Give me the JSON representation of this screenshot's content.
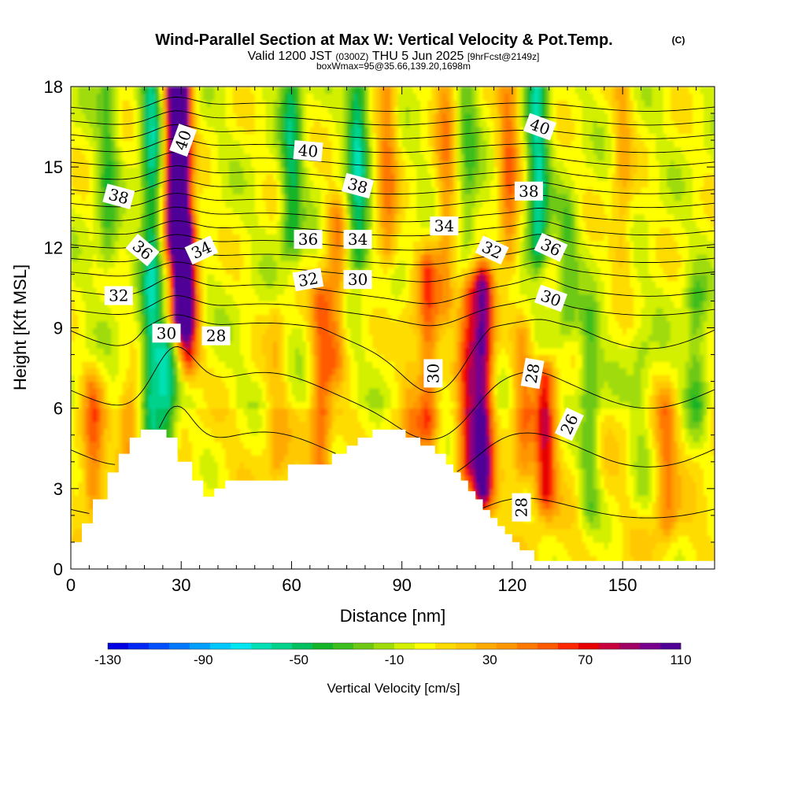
{
  "chart_data": {
    "type": "heatmap",
    "title": "Wind-Parallel Section at Max W: Vertical Velocity & Pot.Temp.",
    "title_mark": "(C)",
    "subtitle_main": "Valid 1200 JST",
    "subtitle_utc": "(0300Z)",
    "subtitle_date": "THU 5 Jun 2025",
    "subtitle_run": "[9hrFcst@2149z]",
    "subtitle_box": "boxWmax=95@35.66,139.20,1698m",
    "xlabel": "Distance [nm]",
    "ylabel": "Height [Kft MSL]",
    "xlim": [
      0,
      175
    ],
    "ylim": [
      0,
      18
    ],
    "x_ticks": [
      "0",
      "30",
      "60",
      "90",
      "120",
      "150"
    ],
    "y_ticks": [
      "0",
      "3",
      "6",
      "9",
      "12",
      "15",
      "18"
    ],
    "colorbar": {
      "label": "Vertical Velocity [cm/s]",
      "tick_labels": [
        "-130",
        "-90",
        "-50",
        "-10",
        "30",
        "70",
        "110"
      ],
      "min": -130,
      "max": 110,
      "colors": [
        "#0000e0",
        "#0028f5",
        "#0050ff",
        "#0078ff",
        "#00a0ff",
        "#00c8ff",
        "#00e6f0",
        "#00e0b4",
        "#00d28c",
        "#00c060",
        "#14b428",
        "#3cbe1e",
        "#6ec814",
        "#a0dc0a",
        "#d2f000",
        "#ffff00",
        "#ffdc00",
        "#ffc800",
        "#ffaa00",
        "#ff9600",
        "#ff7800",
        "#ff5a00",
        "#ff2800",
        "#e60000",
        "#c8003c",
        "#a00064",
        "#78008c",
        "#500096"
      ]
    },
    "terrain_kft": [
      [
        0,
        1.0
      ],
      [
        3,
        1.0
      ],
      [
        3,
        1.7
      ],
      [
        6,
        1.7
      ],
      [
        6,
        2.6
      ],
      [
        10,
        2.6
      ],
      [
        10,
        3.6
      ],
      [
        13,
        3.6
      ],
      [
        13,
        4.3
      ],
      [
        16,
        4.3
      ],
      [
        16,
        4.9
      ],
      [
        19,
        4.9
      ],
      [
        19,
        5.2
      ],
      [
        26,
        5.2
      ],
      [
        26,
        4.9
      ],
      [
        29,
        4.9
      ],
      [
        29,
        4.0
      ],
      [
        33,
        4.0
      ],
      [
        33,
        3.3
      ],
      [
        36,
        3.3
      ],
      [
        36,
        2.7
      ],
      [
        39,
        2.7
      ],
      [
        39,
        3.0
      ],
      [
        42,
        3.0
      ],
      [
        42,
        3.3
      ],
      [
        59,
        3.3
      ],
      [
        59,
        3.9
      ],
      [
        71,
        3.9
      ],
      [
        71,
        4.3
      ],
      [
        75,
        4.3
      ],
      [
        75,
        4.6
      ],
      [
        78,
        4.6
      ],
      [
        78,
        4.9
      ],
      [
        82,
        4.9
      ],
      [
        82,
        5.2
      ],
      [
        91,
        5.2
      ],
      [
        91,
        4.9
      ],
      [
        95,
        4.9
      ],
      [
        95,
        4.6
      ],
      [
        99,
        4.6
      ],
      [
        99,
        4.3
      ],
      [
        102,
        4.3
      ],
      [
        102,
        3.9
      ],
      [
        104,
        3.9
      ],
      [
        104,
        3.6
      ],
      [
        106,
        3.6
      ],
      [
        106,
        3.3
      ],
      [
        108,
        3.3
      ],
      [
        108,
        2.9
      ],
      [
        110,
        2.9
      ],
      [
        110,
        2.6
      ],
      [
        112,
        2.6
      ],
      [
        112,
        2.2
      ],
      [
        114,
        2.2
      ],
      [
        114,
        1.9
      ],
      [
        116,
        1.9
      ],
      [
        116,
        1.6
      ],
      [
        118,
        1.6
      ],
      [
        118,
        1.3
      ],
      [
        120,
        1.3
      ],
      [
        120,
        1.0
      ],
      [
        122,
        1.0
      ],
      [
        122,
        0.7
      ],
      [
        126,
        0.7
      ],
      [
        126,
        0.3
      ],
      [
        175,
        0.3
      ]
    ],
    "w_features": [
      {
        "x": 30,
        "z0": 9.5,
        "z1": 18,
        "w": 105
      },
      {
        "x": 28,
        "z0": 12.5,
        "z1": 18,
        "w": 85
      },
      {
        "x": 32,
        "z0": 8,
        "z1": 12.5,
        "w": 65
      },
      {
        "x": 22,
        "z0": 5.5,
        "z1": 18,
        "w": -55
      },
      {
        "x": 26,
        "z0": 4.5,
        "z1": 8,
        "w": -50
      },
      {
        "x": 10,
        "z0": 12,
        "z1": 18,
        "w": -30
      },
      {
        "x": 6,
        "z0": 3,
        "z1": 6.5,
        "w": 40
      },
      {
        "x": 16,
        "z0": 4.5,
        "z1": 6,
        "w": 35
      },
      {
        "x": 60,
        "z0": 12.5,
        "z1": 18,
        "w": -45
      },
      {
        "x": 56,
        "z0": 4,
        "z1": 9,
        "w": 20
      },
      {
        "x": 68,
        "z0": 3,
        "z1": 10,
        "w": 45
      },
      {
        "x": 72,
        "z0": 8,
        "z1": 13,
        "w": 40
      },
      {
        "x": 78,
        "z0": 12,
        "z1": 18,
        "w": -55
      },
      {
        "x": 86,
        "z0": 12,
        "z1": 18,
        "w": 40
      },
      {
        "x": 92,
        "z0": 5,
        "z1": 9,
        "w": 20
      },
      {
        "x": 97,
        "z0": 5.5,
        "z1": 11,
        "w": 50
      },
      {
        "x": 102,
        "z0": 10,
        "z1": 18,
        "w": 35
      },
      {
        "x": 108,
        "z0": 12.5,
        "z1": 18,
        "w": -25
      },
      {
        "x": 112,
        "z0": 3,
        "z1": 10.5,
        "w": 95
      },
      {
        "x": 108,
        "z0": 4,
        "z1": 10,
        "w": 60
      },
      {
        "x": 119,
        "z0": 12,
        "z1": 18,
        "w": 45
      },
      {
        "x": 123,
        "z0": 4,
        "z1": 8.5,
        "w": 35
      },
      {
        "x": 127,
        "z0": 12,
        "z1": 18,
        "w": -60
      },
      {
        "x": 129,
        "z0": 3,
        "z1": 7,
        "w": 65
      },
      {
        "x": 135,
        "z0": 9.5,
        "z1": 13,
        "w": -25
      },
      {
        "x": 141,
        "z0": 2.5,
        "z1": 9,
        "w": -30
      },
      {
        "x": 155,
        "z0": 3,
        "z1": 8,
        "w": -15
      },
      {
        "x": 162,
        "z0": 2,
        "z1": 6,
        "w": 35
      },
      {
        "x": 170,
        "z0": 6,
        "z1": 10,
        "w": -30
      },
      {
        "x": 150,
        "z0": 12,
        "z1": 18,
        "w": 25
      }
    ],
    "theta_contours": [
      24,
      25,
      26,
      27,
      28,
      29,
      30,
      31,
      32,
      33,
      34,
      35,
      36,
      37,
      38,
      39,
      40,
      41,
      42,
      43
    ],
    "contour_labels": [
      {
        "text": "40",
        "x": 30.5,
        "z": 16.0,
        "angle": -70
      },
      {
        "text": "38",
        "x": 13.0,
        "z": 13.9,
        "angle": 15
      },
      {
        "text": "36",
        "x": 19.5,
        "z": 11.9,
        "angle": 40
      },
      {
        "text": "34",
        "x": 35.5,
        "z": 11.9,
        "angle": -25
      },
      {
        "text": "32",
        "x": 13.0,
        "z": 10.2,
        "angle": 0
      },
      {
        "text": "30",
        "x": 26.0,
        "z": 8.8,
        "angle": 0
      },
      {
        "text": "28",
        "x": 39.5,
        "z": 8.7,
        "angle": 0
      },
      {
        "text": "40",
        "x": 64.5,
        "z": 15.6,
        "angle": 5
      },
      {
        "text": "38",
        "x": 78.0,
        "z": 14.3,
        "angle": 15
      },
      {
        "text": "36",
        "x": 64.5,
        "z": 12.3,
        "angle": 0
      },
      {
        "text": "34",
        "x": 78.0,
        "z": 12.3,
        "angle": 0
      },
      {
        "text": "32",
        "x": 64.5,
        "z": 10.8,
        "angle": -10
      },
      {
        "text": "30",
        "x": 78.0,
        "z": 10.8,
        "angle": 0
      },
      {
        "text": "34",
        "x": 101.5,
        "z": 12.8,
        "angle": 0
      },
      {
        "text": "32",
        "x": 114.5,
        "z": 11.9,
        "angle": 25
      },
      {
        "text": "40",
        "x": 127.5,
        "z": 16.5,
        "angle": 20
      },
      {
        "text": "38",
        "x": 124.5,
        "z": 14.1,
        "angle": 0
      },
      {
        "text": "36",
        "x": 130.5,
        "z": 12.0,
        "angle": 25
      },
      {
        "text": "30",
        "x": 130.5,
        "z": 10.1,
        "angle": 20
      },
      {
        "text": "30",
        "x": 98.5,
        "z": 7.3,
        "angle": -90
      },
      {
        "text": "28",
        "x": 125.5,
        "z": 7.3,
        "angle": -80
      },
      {
        "text": "26",
        "x": 135.5,
        "z": 5.4,
        "angle": -65
      },
      {
        "text": "28",
        "x": 122.5,
        "z": 2.3,
        "angle": -90
      }
    ]
  }
}
